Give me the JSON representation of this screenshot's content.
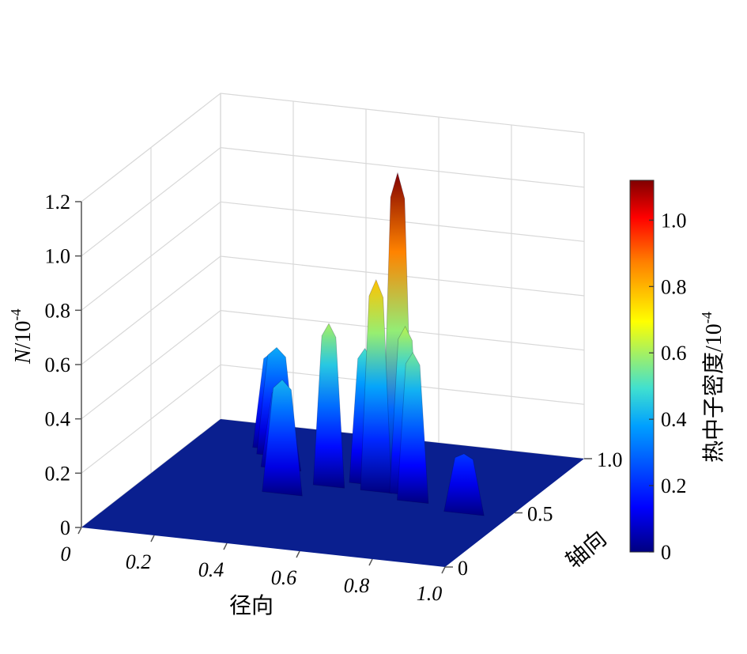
{
  "chart_data": {
    "type": "surface",
    "zlabel_main": "N",
    "zlabel_unit": "/10",
    "zlabel_exp": "-4",
    "xlabel": "径向",
    "ylabel": "轴向",
    "z_ticks": [
      "0",
      "0.2",
      "0.4",
      "0.6",
      "0.8",
      "1.0",
      "1.2"
    ],
    "x_ticks": [
      "0",
      "0.2",
      "0.4",
      "0.6",
      "0.8",
      "1.0"
    ],
    "y_ticks": [
      "0",
      "0.5",
      "1.0"
    ],
    "xlim": [
      0,
      1
    ],
    "ylim": [
      0,
      1
    ],
    "zlim": [
      0,
      1.2
    ],
    "grid": true,
    "colorbar": {
      "label": "热中子密度/10",
      "label_exp": "-4",
      "ticks": [
        "0",
        "0.2",
        "0.4",
        "0.6",
        "0.8",
        "1.0"
      ],
      "range": [
        0,
        1.12
      ],
      "colormap": [
        "#000080",
        "#0000ff",
        "#00a0ff",
        "#40e0d0",
        "#ffff00",
        "#ff8000",
        "#ff0000",
        "#800000"
      ]
    },
    "peaks": [
      {
        "x": 0.22,
        "y": 0.8,
        "z": 0.36
      },
      {
        "x": 0.25,
        "y": 0.75,
        "z": 0.4
      },
      {
        "x": 0.3,
        "y": 0.65,
        "z": 0.3
      },
      {
        "x": 0.38,
        "y": 0.45,
        "z": 0.42
      },
      {
        "x": 0.47,
        "y": 0.55,
        "z": 0.6
      },
      {
        "x": 0.55,
        "y": 0.6,
        "z": 0.5
      },
      {
        "x": 0.6,
        "y": 0.55,
        "z": 0.78
      },
      {
        "x": 0.64,
        "y": 0.6,
        "z": 1.16
      },
      {
        "x": 0.68,
        "y": 0.55,
        "z": 0.62
      },
      {
        "x": 0.72,
        "y": 0.5,
        "z": 0.55
      },
      {
        "x": 0.88,
        "y": 0.45,
        "z": 0.22
      }
    ]
  }
}
